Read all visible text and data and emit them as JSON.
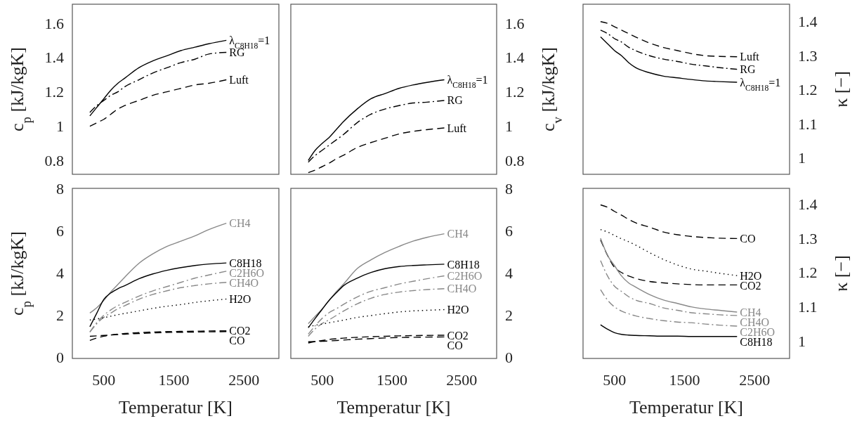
{
  "chart_data": [
    {
      "type": "line",
      "ylabel": "c$_{p}$ [kJ/kgK]",
      "x": [
        300,
        400,
        500,
        600,
        700,
        800,
        1000,
        1200,
        1400,
        1600,
        1800,
        2000,
        2250
      ],
      "xlim": [
        50,
        3000
      ],
      "ylim": [
        0.72,
        1.71
      ],
      "yticks": [
        0.8,
        1,
        1.2,
        1.4,
        1.6
      ],
      "tick_labels": "y",
      "series": [
        {
          "name": "λ$_{C8H18}$=1",
          "color": "#000000",
          "line_style": "solid",
          "values": [
            1.06,
            1.11,
            1.16,
            1.21,
            1.25,
            1.28,
            1.34,
            1.38,
            1.41,
            1.44,
            1.46,
            1.48,
            1.5
          ]
        },
        {
          "name": "RG",
          "color": "#000000",
          "line_style": "dashdot",
          "values": [
            1.08,
            1.12,
            1.15,
            1.18,
            1.2,
            1.23,
            1.27,
            1.31,
            1.34,
            1.37,
            1.39,
            1.42,
            1.43
          ]
        },
        {
          "name": "Luft",
          "color": "#000000",
          "line_style": "dashed",
          "values": [
            1.0,
            1.02,
            1.04,
            1.07,
            1.1,
            1.12,
            1.15,
            1.18,
            1.2,
            1.22,
            1.24,
            1.25,
            1.27
          ]
        }
      ]
    },
    {
      "type": "line",
      "ylabel": "c$_{v}$ [kJ/kgK]",
      "x": [
        300,
        400,
        500,
        600,
        700,
        800,
        1000,
        1200,
        1400,
        1600,
        1800,
        2000,
        2250
      ],
      "xlim": [
        50,
        3000
      ],
      "ylim": [
        0.72,
        1.71
      ],
      "yticks": [
        0.8,
        1,
        1.2,
        1.4,
        1.6
      ],
      "tick_labels": "y",
      "series": [
        {
          "name": "λ$_{C8H18}$=1",
          "color": "#000000",
          "line_style": "solid",
          "values": [
            0.8,
            0.86,
            0.9,
            0.935,
            0.98,
            1.025,
            1.1,
            1.16,
            1.19,
            1.22,
            1.24,
            1.255,
            1.27
          ]
        },
        {
          "name": "RG",
          "color": "#000000",
          "line_style": "dashdot",
          "values": [
            0.79,
            0.83,
            0.86,
            0.89,
            0.92,
            0.95,
            1.02,
            1.07,
            1.1,
            1.12,
            1.135,
            1.14,
            1.15
          ]
        },
        {
          "name": "Luft",
          "color": "#000000",
          "line_style": "dashed",
          "values": [
            0.73,
            0.745,
            0.765,
            0.785,
            0.81,
            0.83,
            0.875,
            0.905,
            0.93,
            0.955,
            0.97,
            0.98,
            0.99
          ]
        }
      ]
    },
    {
      "type": "line",
      "ylabel": "κ [−]",
      "x": [
        300,
        400,
        500,
        600,
        700,
        800,
        1000,
        1200,
        1400,
        1600,
        1800,
        2000,
        2250
      ],
      "xlim": [
        50,
        3000
      ],
      "ylim": [
        0.952,
        1.451
      ],
      "yticks": [
        1,
        1.1,
        1.2,
        1.3,
        1.4
      ],
      "tick_labels": "y",
      "series": [
        {
          "name": "Luft",
          "color": "#000000",
          "line_style": "dashed",
          "values": [
            1.4,
            1.395,
            1.385,
            1.375,
            1.365,
            1.355,
            1.337,
            1.324,
            1.315,
            1.306,
            1.3,
            1.298,
            1.297
          ]
        },
        {
          "name": "RG",
          "color": "#000000",
          "line_style": "dashdot",
          "values": [
            1.375,
            1.365,
            1.35,
            1.34,
            1.325,
            1.315,
            1.3,
            1.29,
            1.283,
            1.275,
            1.27,
            1.265,
            1.26
          ]
        },
        {
          "name": "λ$_{C8H18}$=1",
          "color": "#000000",
          "line_style": "solid",
          "values": [
            1.355,
            1.335,
            1.315,
            1.3,
            1.28,
            1.265,
            1.25,
            1.24,
            1.235,
            1.23,
            1.226,
            1.224,
            1.222
          ]
        }
      ]
    },
    {
      "type": "line",
      "xlabel": "Temperatur [K]",
      "ylabel": "c$_{p}$ [kJ/kgK]",
      "x": [
        300,
        400,
        500,
        600,
        700,
        800,
        1000,
        1200,
        1400,
        1600,
        1800,
        2000,
        2250
      ],
      "xlim": [
        50,
        3000
      ],
      "xticks": [
        500,
        1500,
        2500
      ],
      "ylim": [
        -0.05,
        8
      ],
      "yticks": [
        0,
        2,
        4,
        6,
        8
      ],
      "series": [
        {
          "name": "CH4",
          "color": "#888888",
          "line_style": "solid",
          "values": [
            2.1,
            2.35,
            2.7,
            3.1,
            3.45,
            3.8,
            4.45,
            4.9,
            5.25,
            5.5,
            5.75,
            6.05,
            6.35
          ]
        },
        {
          "name": "C8H18",
          "color": "#000000",
          "line_style": "solid",
          "values": [
            1.45,
            2.1,
            2.75,
            3.05,
            3.25,
            3.4,
            3.72,
            3.95,
            4.12,
            4.25,
            4.35,
            4.42,
            4.47
          ]
        },
        {
          "name": "C2H6O",
          "color": "#888888",
          "line_style": "dashdot",
          "values": [
            1.2,
            1.65,
            2.0,
            2.25,
            2.45,
            2.6,
            2.9,
            3.15,
            3.35,
            3.55,
            3.75,
            3.9,
            4.08
          ]
        },
        {
          "name": "CH4O",
          "color": "#888888",
          "line_style": "dashdot",
          "values": [
            1.2,
            1.6,
            1.9,
            2.1,
            2.3,
            2.45,
            2.75,
            2.98,
            3.15,
            3.3,
            3.4,
            3.48,
            3.55
          ]
        },
        {
          "name": "H2O",
          "color": "#000000",
          "line_style": "dotted",
          "values": [
            1.77,
            1.82,
            1.88,
            1.95,
            2.02,
            2.08,
            2.2,
            2.32,
            2.42,
            2.5,
            2.6,
            2.68,
            2.76
          ]
        },
        {
          "name": "CO2",
          "color": "#000000",
          "line_style": "dashed",
          "values": [
            0.8,
            0.92,
            1.0,
            1.06,
            1.1,
            1.13,
            1.17,
            1.2,
            1.22,
            1.23,
            1.24,
            1.25,
            1.26
          ]
        },
        {
          "name": "CO",
          "color": "#000000",
          "line_style": "dashed",
          "values": [
            1.0,
            1.02,
            1.04,
            1.06,
            1.08,
            1.1,
            1.13,
            1.16,
            1.18,
            1.19,
            1.2,
            1.21,
            1.22
          ]
        }
      ]
    },
    {
      "type": "line",
      "xlabel": "Temperatur [K]",
      "x": [
        300,
        400,
        500,
        600,
        700,
        800,
        1000,
        1200,
        1400,
        1600,
        1800,
        2000,
        2250
      ],
      "xlim": [
        50,
        3000
      ],
      "xticks": [
        500,
        1500,
        2500
      ],
      "ylim": [
        -0.05,
        8
      ],
      "yticks": [
        0,
        2,
        4,
        6,
        8
      ],
      "series": [
        {
          "name": "CH4",
          "color": "#888888",
          "line_style": "solid",
          "values": [
            1.6,
            1.95,
            2.3,
            2.7,
            3.1,
            3.45,
            4.2,
            4.62,
            4.97,
            5.25,
            5.5,
            5.68,
            5.85
          ]
        },
        {
          "name": "C8H18",
          "color": "#000000",
          "line_style": "solid",
          "values": [
            1.4,
            1.85,
            2.28,
            2.7,
            3.05,
            3.38,
            3.75,
            4.02,
            4.2,
            4.3,
            4.35,
            4.38,
            4.41
          ]
        },
        {
          "name": "C2H6O",
          "color": "#888888",
          "line_style": "dashdot",
          "values": [
            1.1,
            1.5,
            1.85,
            2.12,
            2.3,
            2.5,
            2.86,
            3.13,
            3.3,
            3.47,
            3.6,
            3.72,
            3.86
          ]
        },
        {
          "name": "CH4O",
          "color": "#888888",
          "line_style": "dashdot",
          "values": [
            1.0,
            1.35,
            1.6,
            1.78,
            1.98,
            2.18,
            2.53,
            2.8,
            2.98,
            3.09,
            3.16,
            3.21,
            3.25
          ]
        },
        {
          "name": "H2O",
          "color": "#000000",
          "line_style": "dotted",
          "values": [
            1.45,
            1.52,
            1.58,
            1.64,
            1.7,
            1.76,
            1.89,
            1.98,
            2.07,
            2.15,
            2.2,
            2.23,
            2.26
          ]
        },
        {
          "name": "CO2",
          "color": "#000000",
          "line_style": "dashed",
          "values": [
            0.68,
            0.75,
            0.8,
            0.85,
            0.88,
            0.91,
            0.95,
            0.98,
            1.0,
            1.02,
            1.03,
            1.04,
            1.05
          ]
        },
        {
          "name": "CO",
          "color": "#000000",
          "line_style": "dashed",
          "values": [
            0.74,
            0.75,
            0.76,
            0.78,
            0.8,
            0.82,
            0.86,
            0.89,
            0.92,
            0.94,
            0.95,
            0.96,
            0.97
          ]
        }
      ]
    },
    {
      "type": "line",
      "xlabel": "Temperatur [K]",
      "ylabel": "κ [−]",
      "x": [
        300,
        400,
        500,
        600,
        700,
        800,
        1000,
        1200,
        1400,
        1600,
        1800,
        2000,
        2250
      ],
      "xlim": [
        50,
        3000
      ],
      "xticks": [
        500,
        1500,
        2500
      ],
      "ylim": [
        0.95,
        1.445
      ],
      "yticks": [
        1,
        1.1,
        1.2,
        1.3,
        1.4
      ],
      "series": [
        {
          "name": "CO",
          "color": "#000000",
          "line_style": "dashed",
          "values": [
            1.397,
            1.39,
            1.378,
            1.367,
            1.355,
            1.345,
            1.332,
            1.318,
            1.31,
            1.305,
            1.302,
            1.3,
            1.299
          ]
        },
        {
          "name": "H2O",
          "color": "#000000",
          "line_style": "dotted",
          "values": [
            1.325,
            1.318,
            1.308,
            1.298,
            1.29,
            1.28,
            1.258,
            1.238,
            1.222,
            1.21,
            1.204,
            1.198,
            1.191
          ]
        },
        {
          "name": "CO2",
          "color": "#000000",
          "line_style": "dashed",
          "values": [
            1.295,
            1.25,
            1.215,
            1.2,
            1.19,
            1.183,
            1.174,
            1.17,
            1.167,
            1.165,
            1.164,
            1.164,
            1.164
          ]
        },
        {
          "name": "CH4",
          "color": "#888888",
          "line_style": "solid",
          "values": [
            1.3,
            1.25,
            1.22,
            1.19,
            1.17,
            1.158,
            1.136,
            1.12,
            1.11,
            1.1,
            1.094,
            1.09,
            1.085
          ]
        },
        {
          "name": "CH4O",
          "color": "#888888",
          "line_style": "dashdot",
          "values": [
            1.235,
            1.19,
            1.16,
            1.145,
            1.13,
            1.12,
            1.11,
            1.097,
            1.09,
            1.083,
            1.08,
            1.077,
            1.075
          ]
        },
        {
          "name": "C2H6O",
          "color": "#888888",
          "line_style": "dashdot",
          "values": [
            1.15,
            1.12,
            1.1,
            1.088,
            1.08,
            1.074,
            1.066,
            1.06,
            1.056,
            1.054,
            1.05,
            1.047,
            1.044
          ]
        },
        {
          "name": "C8H18",
          "color": "#000000",
          "line_style": "solid",
          "values": [
            1.048,
            1.035,
            1.025,
            1.02,
            1.018,
            1.017,
            1.016,
            1.015,
            1.015,
            1.014,
            1.014,
            1.014,
            1.014
          ]
        }
      ]
    }
  ]
}
